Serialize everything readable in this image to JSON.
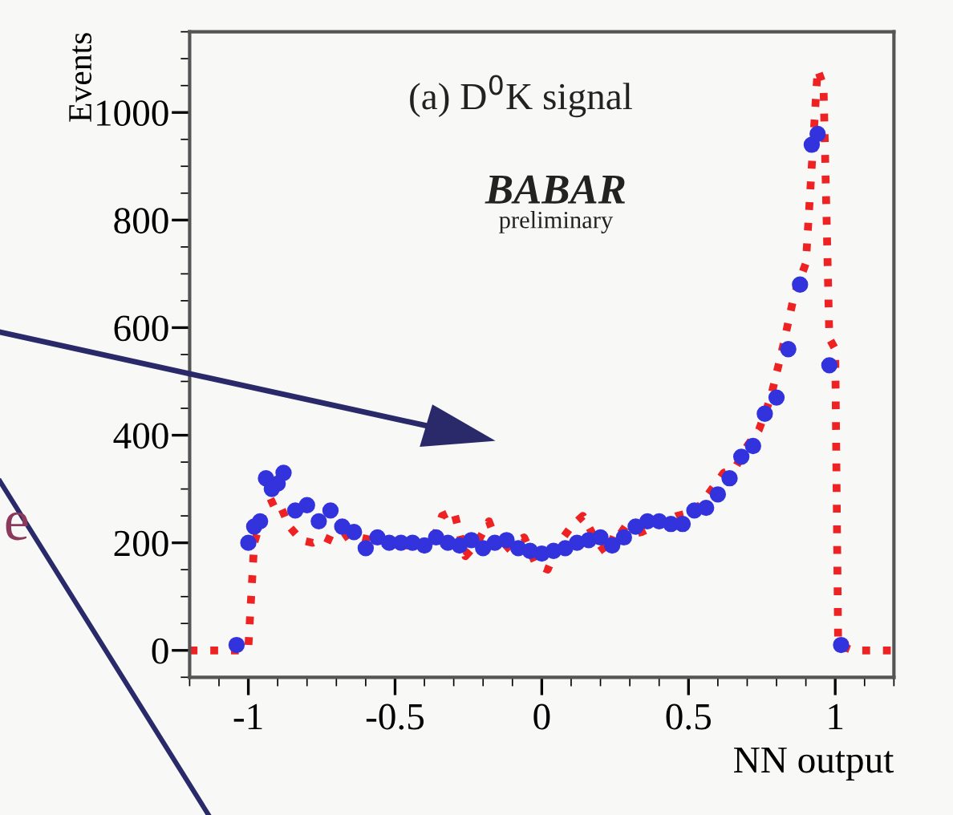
{
  "chart_data": {
    "type": "line",
    "xlabel": "NN output",
    "ylabel": "Events",
    "annotations": [
      "(a) D$^{0}$K signal",
      "BABAR",
      "preliminary",
      "e"
    ],
    "xlim": [
      -1.2,
      1.2
    ],
    "ylim": [
      -50,
      1150
    ],
    "xticks": [
      {
        "value": -1,
        "label": "-1"
      },
      {
        "value": -0.5,
        "label": "-0.5"
      },
      0,
      0.5,
      1
    ],
    "yticks": [
      0,
      200,
      400,
      600,
      800,
      1000
    ],
    "grid": false,
    "legend": false,
    "series": [
      {
        "line_style": "dotted",
        "marker": "none",
        "color": "#ee2222",
        "x": [
          -1.2,
          -1.02,
          -1.0,
          -0.98,
          -0.94,
          -0.9,
          -0.86,
          -0.82,
          -0.78,
          -0.74,
          -0.7,
          -0.66,
          -0.62,
          -0.58,
          -0.54,
          -0.5,
          -0.46,
          -0.42,
          -0.38,
          -0.34,
          -0.3,
          -0.26,
          -0.22,
          -0.18,
          -0.14,
          -0.1,
          -0.06,
          -0.02,
          0.02,
          0.06,
          0.1,
          0.14,
          0.18,
          0.22,
          0.26,
          0.3,
          0.34,
          0.38,
          0.42,
          0.46,
          0.5,
          0.54,
          0.58,
          0.62,
          0.66,
          0.7,
          0.74,
          0.78,
          0.82,
          0.86,
          0.9,
          0.92,
          0.94,
          0.96,
          0.98,
          1.0,
          1.01,
          1.06,
          1.2
        ],
        "values": [
          0,
          0,
          5,
          200,
          270,
          280,
          230,
          205,
          200,
          210,
          200,
          215,
          210,
          205,
          200,
          205,
          195,
          200,
          190,
          250,
          260,
          175,
          200,
          240,
          180,
          200,
          210,
          160,
          150,
          200,
          230,
          250,
          210,
          180,
          230,
          215,
          220,
          230,
          240,
          250,
          255,
          270,
          300,
          330,
          340,
          380,
          410,
          470,
          560,
          660,
          720,
          900,
          1080,
          1050,
          580,
          560,
          10,
          0,
          0
        ]
      },
      {
        "type": "scatter",
        "marker": "circle",
        "color": "#3333dd",
        "x": [
          -1.04,
          -1.0,
          -0.98,
          -0.96,
          -0.94,
          -0.92,
          -0.9,
          -0.88,
          -0.84,
          -0.8,
          -0.76,
          -0.72,
          -0.68,
          -0.64,
          -0.6,
          -0.56,
          -0.52,
          -0.48,
          -0.44,
          -0.4,
          -0.36,
          -0.32,
          -0.28,
          -0.24,
          -0.2,
          -0.16,
          -0.12,
          -0.08,
          -0.04,
          0.0,
          0.04,
          0.08,
          0.12,
          0.16,
          0.2,
          0.24,
          0.28,
          0.32,
          0.36,
          0.4,
          0.44,
          0.48,
          0.52,
          0.56,
          0.6,
          0.64,
          0.68,
          0.72,
          0.76,
          0.8,
          0.84,
          0.88,
          0.92,
          0.94,
          0.98,
          1.02
        ],
        "values": [
          10,
          200,
          230,
          240,
          320,
          300,
          310,
          330,
          260,
          270,
          240,
          260,
          230,
          220,
          190,
          210,
          200,
          200,
          200,
          195,
          210,
          200,
          195,
          205,
          190,
          200,
          205,
          190,
          185,
          180,
          185,
          190,
          200,
          205,
          210,
          195,
          210,
          230,
          240,
          240,
          235,
          235,
          260,
          265,
          290,
          320,
          360,
          380,
          440,
          470,
          560,
          680,
          940,
          960,
          530,
          10
        ]
      }
    ]
  }
}
